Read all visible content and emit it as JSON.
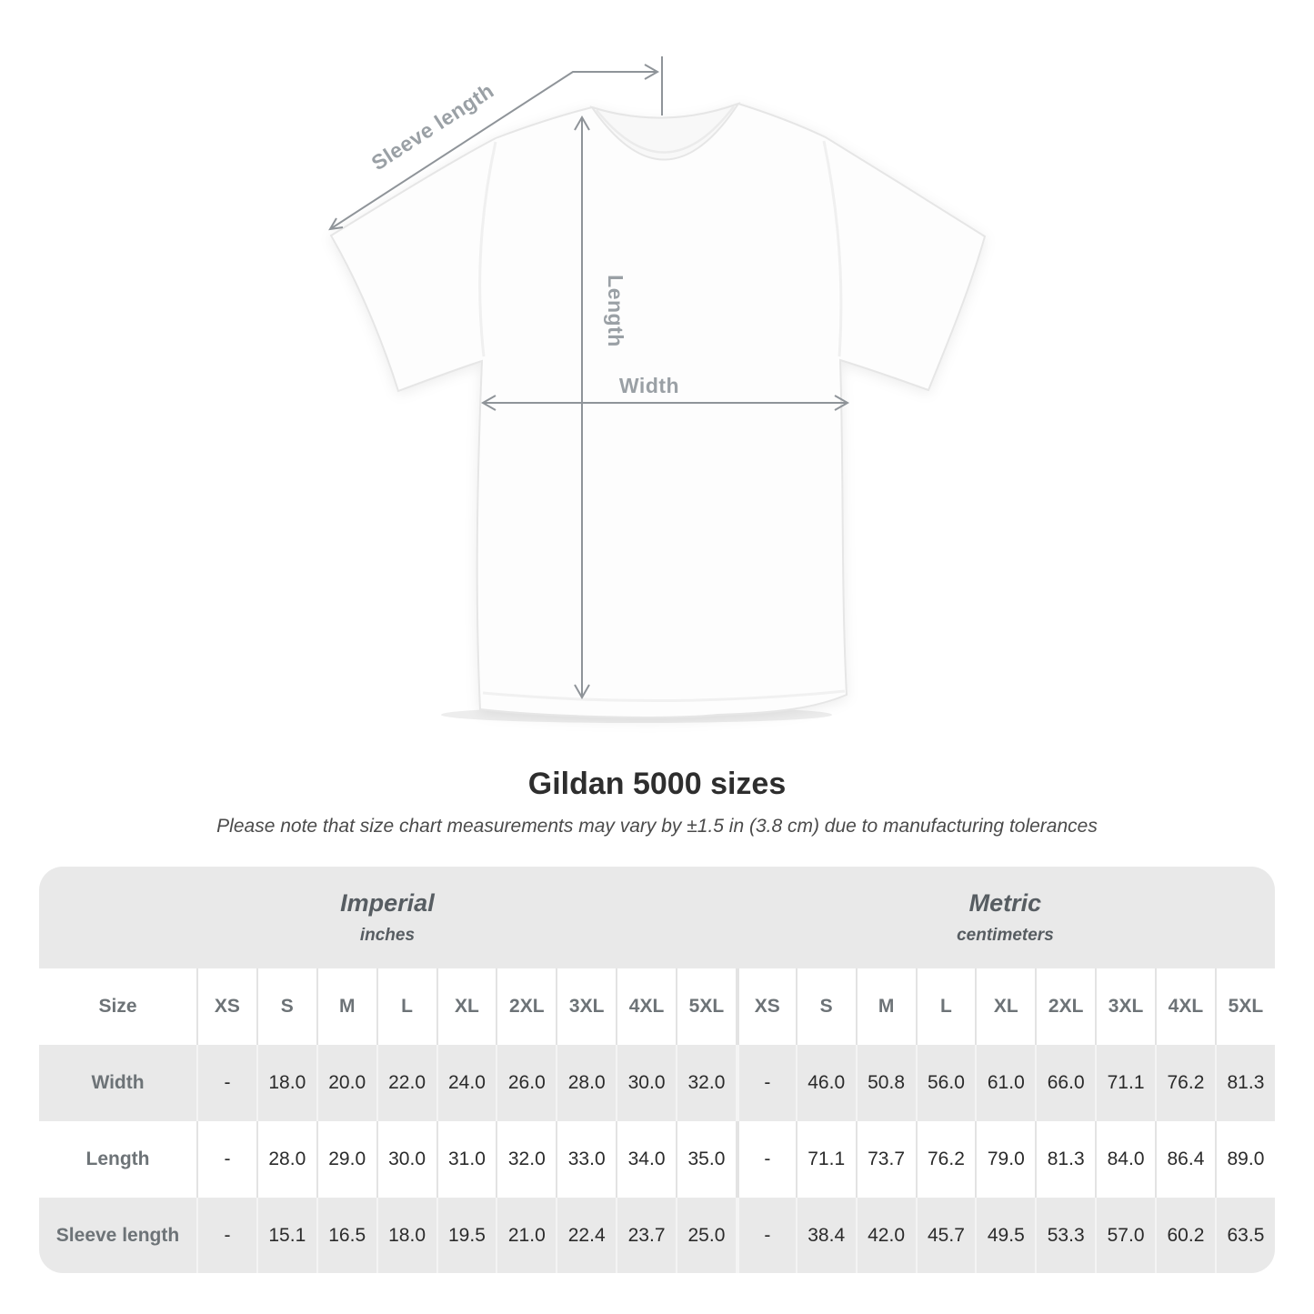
{
  "diagram": {
    "sleeve_length_label": "Sleeve length",
    "length_label": "Length",
    "width_label": "Width"
  },
  "title": "Gildan 5000 sizes",
  "subtitle": "Please note that size chart measurements may vary by ±1.5 in (3.8 cm) due to manufacturing tolerances",
  "size_table": {
    "corner_label": "Size",
    "sections": [
      {
        "name": "Imperial",
        "unit": "inches"
      },
      {
        "name": "Metric",
        "unit": "centimeters"
      }
    ],
    "sizes": [
      "XS",
      "S",
      "M",
      "L",
      "XL",
      "2XL",
      "3XL",
      "4XL",
      "5XL"
    ],
    "rows": [
      {
        "label": "Width",
        "imperial": [
          "-",
          "18.0",
          "20.0",
          "22.0",
          "24.0",
          "26.0",
          "28.0",
          "30.0",
          "32.0"
        ],
        "metric": [
          "-",
          "46.0",
          "50.8",
          "56.0",
          "61.0",
          "66.0",
          "71.1",
          "76.2",
          "81.3"
        ]
      },
      {
        "label": "Length",
        "imperial": [
          "-",
          "28.0",
          "29.0",
          "30.0",
          "31.0",
          "32.0",
          "33.0",
          "34.0",
          "35.0"
        ],
        "metric": [
          "-",
          "71.1",
          "73.7",
          "76.2",
          "79.0",
          "81.3",
          "84.0",
          "86.4",
          "89.0"
        ]
      },
      {
        "label": "Sleeve length",
        "imperial": [
          "-",
          "15.1",
          "16.5",
          "18.0",
          "19.5",
          "21.0",
          "22.4",
          "23.7",
          "25.0"
        ],
        "metric": [
          "-",
          "38.4",
          "42.0",
          "45.7",
          "49.5",
          "53.3",
          "57.0",
          "60.2",
          "63.5"
        ]
      }
    ]
  },
  "colors": {
    "band_gray": "#e9e9e9",
    "arrow_gray": "#8f9499",
    "diagram_label_gray": "#9aa0a5"
  }
}
